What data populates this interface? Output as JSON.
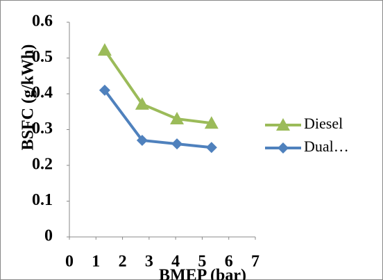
{
  "chart_data": {
    "type": "line",
    "x_label": "BMEP (bar)",
    "y_label": "BSFC (g/kWh)",
    "series": [
      {
        "name": "Diesel",
        "color": "#9bbb59",
        "marker": "triangle",
        "x": [
          1.33,
          2.74,
          4.05,
          5.35
        ],
        "values": [
          0.522,
          0.371,
          0.33,
          0.318
        ]
      },
      {
        "name": "Dual…",
        "color": "#4f81bd",
        "marker": "diamond",
        "x": [
          1.33,
          2.74,
          4.05,
          5.35
        ],
        "values": [
          0.41,
          0.27,
          0.26,
          0.25
        ]
      }
    ],
    "xlim": [
      0,
      7
    ],
    "xticks": [
      0,
      1,
      2,
      3,
      4,
      5,
      6,
      7
    ],
    "ylim": [
      0,
      0.6
    ],
    "yticks": [
      0,
      0.1,
      0.2,
      0.3,
      0.4,
      0.5,
      0.6
    ],
    "grid": false,
    "legend": "right"
  }
}
